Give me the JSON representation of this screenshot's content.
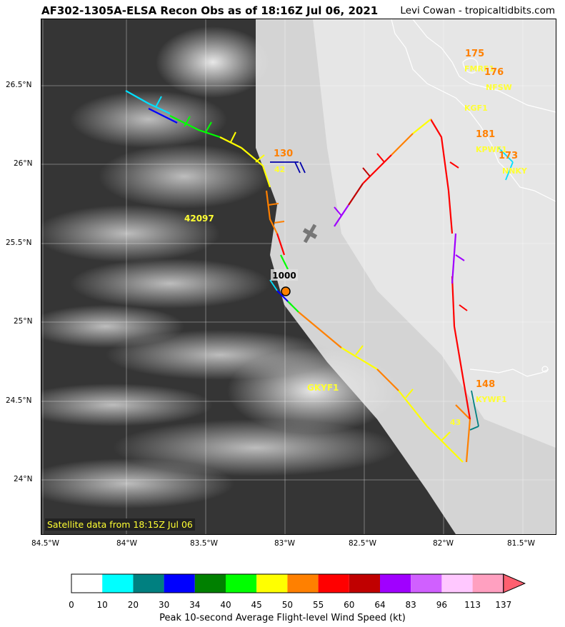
{
  "header": {
    "title": "AF302-1305A-ELSA Recon Obs as of 18:16Z Jul 06, 2021",
    "credit": "Levi Cowan - tropicaltidbits.com"
  },
  "map": {
    "satellite_note": "Satellite data from 18:15Z Jul 06",
    "lon_ticks": [
      "84.5°W",
      "84°W",
      "83.5°W",
      "83°W",
      "82.5°W",
      "82°W",
      "81.5°W"
    ],
    "lat_ticks": [
      "26.5°N",
      "26°N",
      "25.5°N",
      "25°N",
      "24.5°N",
      "24°N"
    ],
    "pressure_label": "1000",
    "station_ids": {
      "fmrf1": "FMRF1",
      "nfsw": "NFSW",
      "kgf": "KGF1",
      "kpwf1": "KPWF1",
      "nnky": "NNKY",
      "buoy_42097": "42097",
      "gkyf1": "GKYF1",
      "kywf1": "KYWF1",
      "s42": "42",
      "s43": "43"
    },
    "station_values": {
      "v175": "175",
      "v176": "176",
      "v181": "181",
      "v173": "173",
      "v130": "130",
      "v148": "148"
    }
  },
  "colorbar": {
    "label": "Peak 10-second Average Flight-level Wind Speed (kt)",
    "ticks": [
      "0",
      "10",
      "20",
      "30",
      "34",
      "40",
      "45",
      "50",
      "55",
      "60",
      "64",
      "83",
      "96",
      "113",
      "137"
    ],
    "colors": [
      "#ffffff",
      "#00ffff",
      "#008080",
      "#0000ff",
      "#008000",
      "#00ff00",
      "#ffff00",
      "#ff8000",
      "#ff0000",
      "#c00000",
      "#a000ff",
      "#d060ff",
      "#ffc8ff",
      "#ffa0c0",
      "#ff6070"
    ]
  }
}
